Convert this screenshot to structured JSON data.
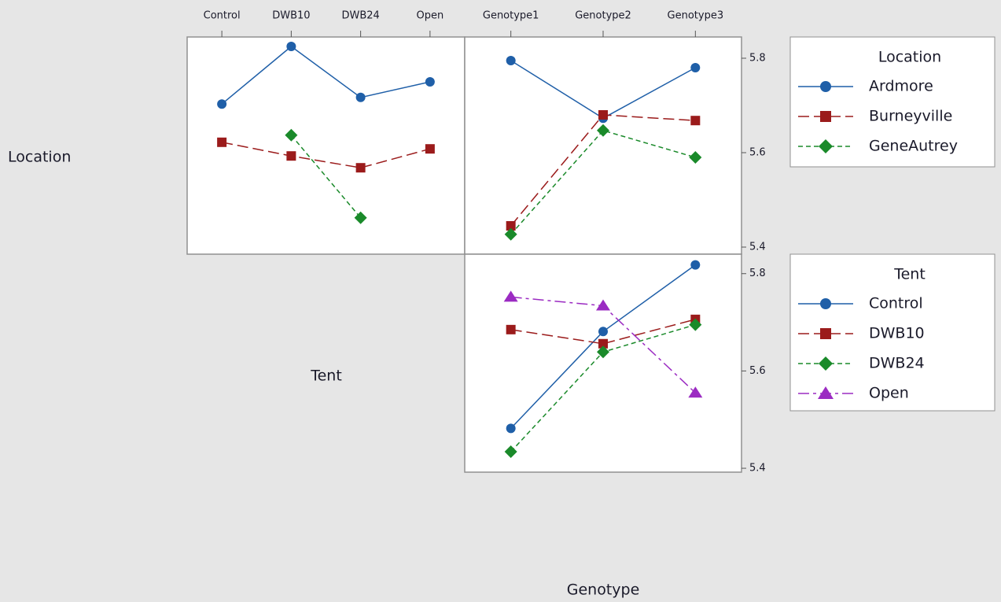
{
  "row_labels": [
    "Location",
    "Tent"
  ],
  "column_label": "Genotype",
  "chart_data": [
    {
      "type": "line",
      "categories": [
        "Control",
        "DWB10",
        "DWB24",
        "Open"
      ],
      "ylim": [
        5.385,
        5.845
      ],
      "series": [
        {
          "color": "#1f5fa8",
          "values": [
            5.703,
            5.825,
            5.717,
            5.75
          ]
        },
        {
          "color": "#9b1b1b",
          "values": [
            5.622,
            5.593,
            5.568,
            5.608
          ]
        },
        {
          "color": "#1a8a2a",
          "values": [
            null,
            5.637,
            5.462,
            null
          ]
        }
      ]
    },
    {
      "type": "line",
      "categories": [
        "Genotype1",
        "Genotype2",
        "Genotype3"
      ],
      "ylim": [
        5.385,
        5.845
      ],
      "yticks": [
        5.4,
        5.6,
        5.8
      ],
      "legend_title": "Location",
      "series": [
        {
          "name": "Ardmore",
          "color": "#1f5fa8",
          "values": [
            5.795,
            5.673,
            5.78
          ]
        },
        {
          "name": "Burneyville",
          "color": "#9b1b1b",
          "values": [
            5.445,
            5.68,
            5.668
          ]
        },
        {
          "name": "GeneAutrey",
          "color": "#1a8a2a",
          "values": [
            5.427,
            5.647,
            5.59
          ]
        }
      ]
    },
    {
      "type": "line",
      "ylim": [
        5.392,
        5.84
      ],
      "yticks": [
        5.4,
        5.6,
        5.8
      ],
      "legend_title": "Tent",
      "series": [
        {
          "name": "Control",
          "color": "#1f5fa8",
          "values": [
            5.482,
            5.681,
            5.818
          ]
        },
        {
          "name": "DWB10",
          "color": "#9b1b1b",
          "values": [
            5.685,
            5.656,
            5.706
          ]
        },
        {
          "name": "DWB24",
          "color": "#1a8a2a",
          "values": [
            5.434,
            5.639,
            5.695
          ]
        },
        {
          "name": "Open",
          "color": "#9b2bc2",
          "values": [
            5.752,
            5.734,
            5.555
          ]
        }
      ]
    }
  ]
}
